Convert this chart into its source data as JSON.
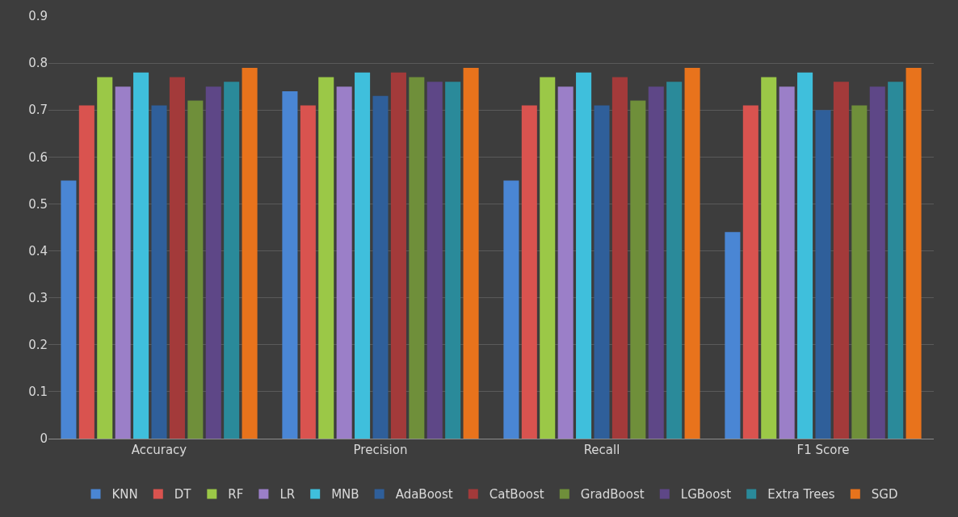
{
  "chart_data": {
    "type": "bar",
    "categories": [
      "Accuracy",
      "Precision",
      "Recall",
      "F1 Score"
    ],
    "series": [
      {
        "name": "KNN",
        "color": "#4a86d4",
        "values": [
          0.55,
          0.74,
          0.55,
          0.44
        ]
      },
      {
        "name": "DT",
        "color": "#d9534f",
        "values": [
          0.71,
          0.71,
          0.71,
          0.71
        ]
      },
      {
        "name": "RF",
        "color": "#9bc847",
        "values": [
          0.77,
          0.77,
          0.77,
          0.77
        ]
      },
      {
        "name": "LR",
        "color": "#9b7fc8",
        "values": [
          0.75,
          0.75,
          0.75,
          0.75
        ]
      },
      {
        "name": "MNB",
        "color": "#3fbfdc",
        "values": [
          0.78,
          0.78,
          0.78,
          0.78
        ]
      },
      {
        "name": "AdaBoost",
        "color": "#2f5f9a",
        "values": [
          0.71,
          0.73,
          0.71,
          0.7
        ]
      },
      {
        "name": "CatBoost",
        "color": "#a33a3a",
        "values": [
          0.77,
          0.78,
          0.77,
          0.76
        ]
      },
      {
        "name": "GradBoost",
        "color": "#6f8f3a",
        "values": [
          0.72,
          0.77,
          0.72,
          0.71
        ]
      },
      {
        "name": "LGBoost",
        "color": "#5e4787",
        "values": [
          0.75,
          0.76,
          0.75,
          0.75
        ]
      },
      {
        "name": "Extra Trees",
        "color": "#2a8a9a",
        "values": [
          0.76,
          0.76,
          0.76,
          0.76
        ]
      },
      {
        "name": "SGD",
        "color": "#e8731c",
        "values": [
          0.79,
          0.79,
          0.79,
          0.79
        ]
      }
    ],
    "ylim": [
      0,
      0.9
    ],
    "yticks": [
      {
        "value": 0,
        "label": "0"
      },
      0.1,
      0.2,
      0.3,
      0.4,
      0.5,
      0.6,
      0.7,
      0.8,
      0.9
    ],
    "grid": "y",
    "legend": "bottom"
  }
}
